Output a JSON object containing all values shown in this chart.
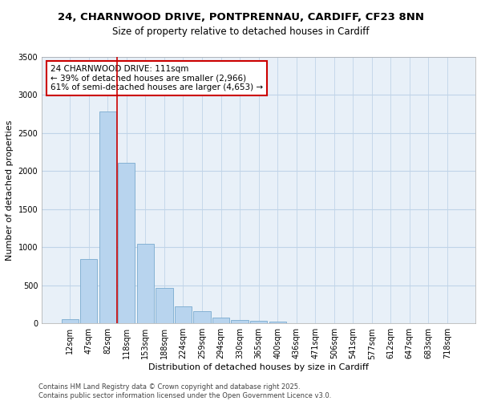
{
  "title_line1": "24, CHARNWOOD DRIVE, PONTPRENNAU, CARDIFF, CF23 8NN",
  "title_line2": "Size of property relative to detached houses in Cardiff",
  "xlabel": "Distribution of detached houses by size in Cardiff",
  "ylabel": "Number of detached properties",
  "categories": [
    "12sqm",
    "47sqm",
    "82sqm",
    "118sqm",
    "153sqm",
    "188sqm",
    "224sqm",
    "259sqm",
    "294sqm",
    "330sqm",
    "365sqm",
    "400sqm",
    "436sqm",
    "471sqm",
    "506sqm",
    "541sqm",
    "577sqm",
    "612sqm",
    "647sqm",
    "683sqm",
    "718sqm"
  ],
  "values": [
    55,
    840,
    2780,
    2110,
    1040,
    460,
    220,
    160,
    80,
    40,
    35,
    25,
    5,
    5,
    0,
    0,
    0,
    0,
    0,
    0,
    0
  ],
  "bar_color": "#b8d4ee",
  "bar_edge_color": "#7aabcf",
  "vline_color": "#cc0000",
  "annotation_box_text": "24 CHARNWOOD DRIVE: 111sqm\n← 39% of detached houses are smaller (2,966)\n61% of semi-detached houses are larger (4,653) →",
  "annotation_box_color": "#cc0000",
  "annotation_bg": "#ffffff",
  "ylim": [
    0,
    3500
  ],
  "yticks": [
    0,
    500,
    1000,
    1500,
    2000,
    2500,
    3000,
    3500
  ],
  "grid_color": "#c0d4e8",
  "bg_color": "#e8f0f8",
  "footer_line1": "Contains HM Land Registry data © Crown copyright and database right 2025.",
  "footer_line2": "Contains public sector information licensed under the Open Government Licence v3.0.",
  "title_fontsize": 9.5,
  "subtitle_fontsize": 8.5,
  "axis_label_fontsize": 8,
  "tick_fontsize": 7,
  "footer_fontsize": 6
}
